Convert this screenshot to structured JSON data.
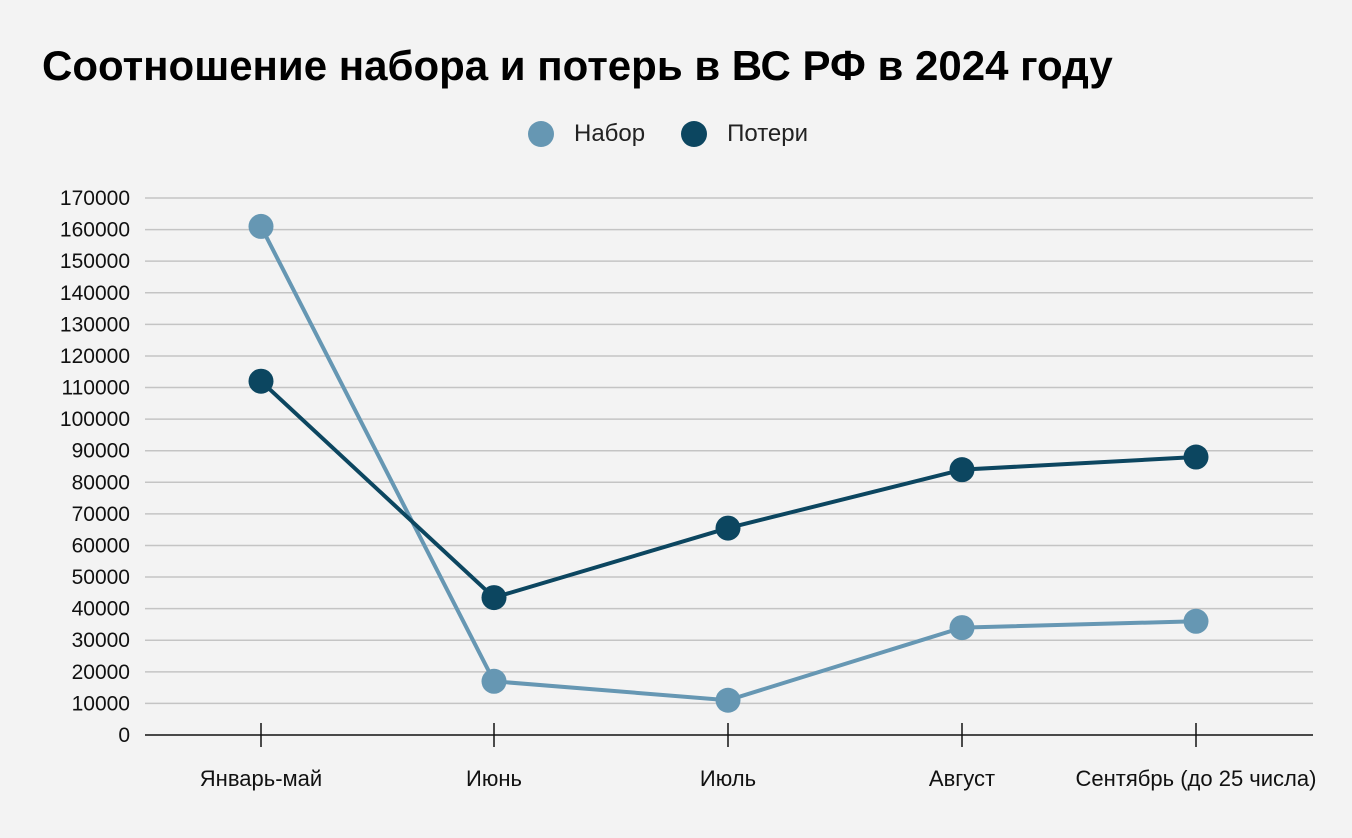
{
  "chart_data": {
    "type": "line",
    "title": "Соотношение набора и потерь в ВС РФ в 2024 году",
    "categories": [
      "Январь-май",
      "Июнь",
      "Июль",
      "Август",
      "Сентябрь (до 25 числа)"
    ],
    "series": [
      {
        "name": "Набор",
        "color": "#6697b3",
        "values": [
          161000,
          17000,
          11000,
          34000,
          36000
        ]
      },
      {
        "name": "Потери",
        "color": "#0c4660",
        "values": [
          112000,
          43500,
          65500,
          84000,
          88000
        ]
      }
    ],
    "ylim": [
      0,
      170000
    ],
    "yticks": [
      "0",
      "10000",
      "20000",
      "30000",
      "40000",
      "50000",
      "60000",
      "70000",
      "80000",
      "90000",
      "100000",
      "110000",
      "120000",
      "130000",
      "140000",
      "150000",
      "160000",
      "170000"
    ],
    "grid": true,
    "legend_position": "top-center"
  }
}
